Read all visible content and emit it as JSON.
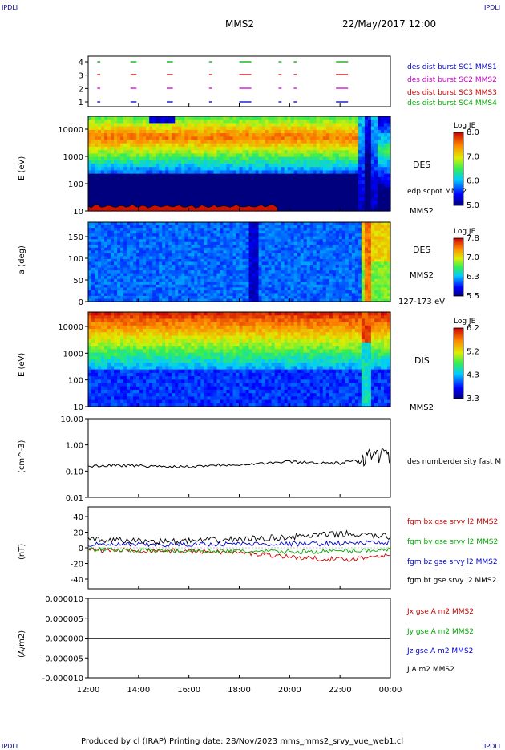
{
  "header": {
    "corner_label": "IPDLI",
    "spacecraft": "MMS2",
    "datetime": "22/May/2017 12:00"
  },
  "footer": "Produced by cl (IRAP)   Printing date: 28/Nov/2023   mms_mms2_srvy_vue_web1.cl",
  "colors": {
    "mms1": "#0000cc",
    "mms2": "#cc00cc",
    "mms3": "#cc0000",
    "mms4": "#00aa00"
  },
  "panels": {
    "burst": {
      "yticks": [
        "4",
        "3",
        "2",
        "1"
      ],
      "legend": [
        "des dist burst SC1 MMS1",
        "des dist burst SC2 MMS2",
        "des dist burst SC3 MMS3",
        "des dist burst SC4 MMS4"
      ]
    },
    "des_energy": {
      "ylabel": "E (eV)",
      "yticks": [
        "10000",
        "1000",
        "100",
        "10"
      ],
      "label_species": "DES",
      "label_scpot": "edp scpot MMS2",
      "label_sc": "MMS2",
      "colorbar_title": "Log JE",
      "colorbar_ticks": [
        "8.0",
        "7.0",
        "6.0",
        "5.0"
      ]
    },
    "des_pitch": {
      "ylabel": "a (deg)",
      "yticks": [
        "150",
        "100",
        "50",
        "0"
      ],
      "label_species": "DES",
      "label_sc": "MMS2",
      "label_range": "127-173 eV",
      "colorbar_title": "Log JE",
      "colorbar_ticks": [
        "7.8",
        "7.0",
        "6.3",
        "5.5"
      ]
    },
    "dis_energy": {
      "ylabel": "E (eV)",
      "yticks": [
        "10000",
        "1000",
        "100",
        "10"
      ],
      "label_species": "DIS",
      "label_sc": "MMS2",
      "colorbar_title": "Log JE",
      "colorbar_ticks": [
        "6.2",
        "5.2",
        "4.3",
        "3.3"
      ]
    },
    "density": {
      "ylabel": "(cm^-3)",
      "yticks": [
        "10.00",
        "1.00",
        "0.10",
        "0.01"
      ],
      "legend": "des numberdensity fast M"
    },
    "field": {
      "ylabel": "(nT)",
      "yticks": [
        "40",
        "20",
        "0",
        "-20",
        "-40"
      ],
      "legend": [
        "fgm bx gse srvy l2 MMS2",
        "fgm by gse srvy l2 MMS2",
        "fgm bz gse srvy l2 MMS2",
        "fgm bt gse srvy l2 MMS2"
      ]
    },
    "current": {
      "ylabel": "(A/m2)",
      "yticks": [
        "0.000010",
        "0.000005",
        "0.000000",
        "-0.000005",
        "-0.000010"
      ],
      "legend": [
        "Jx gse A m2 MMS2",
        "Jy gse A m2 MMS2",
        "Jz gse A m2 MMS2",
        "J A m2 MMS2"
      ]
    }
  },
  "xaxis": {
    "ticks": [
      "12:00",
      "14:00",
      "16:00",
      "18:00",
      "20:00",
      "22:00",
      "00:00"
    ]
  },
  "chart_data": [
    {
      "type": "scatter",
      "panel": "burst intervals",
      "x_range": [
        "12:00",
        "00:00"
      ],
      "y_categories": [
        1,
        2,
        3,
        4
      ],
      "series": [
        {
          "name": "des dist burst SC1 MMS1"
        },
        {
          "name": "des dist burst SC2 MMS2"
        },
        {
          "name": "des dist burst SC3 MMS3"
        },
        {
          "name": "des dist burst SC4 MMS4"
        }
      ]
    },
    {
      "type": "heatmap",
      "panel": "DES energy spectrogram",
      "yscale": "log",
      "ylim": [
        10,
        30000
      ],
      "colorbar_range": [
        5.0,
        8.0
      ]
    },
    {
      "type": "heatmap",
      "panel": "DES pitch angle",
      "ylim": [
        0,
        180
      ],
      "colorbar_range": [
        5.5,
        7.8
      ]
    },
    {
      "type": "heatmap",
      "panel": "DIS energy spectrogram",
      "yscale": "log",
      "ylim": [
        10,
        30000
      ],
      "colorbar_range": [
        3.3,
        6.2
      ]
    },
    {
      "type": "line",
      "panel": "density",
      "yscale": "log",
      "ylim": [
        0.01,
        10
      ],
      "x": [
        "12:00",
        "13:00",
        "14:00",
        "15:00",
        "16:00",
        "17:00",
        "18:00",
        "19:00",
        "20:00",
        "21:00",
        "22:00",
        "22:40",
        "23:00",
        "23:30",
        "00:00"
      ],
      "values": [
        0.15,
        0.17,
        0.16,
        0.15,
        0.15,
        0.17,
        0.18,
        0.2,
        0.23,
        0.21,
        0.2,
        0.25,
        0.4,
        0.5,
        0.45
      ]
    },
    {
      "type": "line",
      "panel": "magnetic field",
      "ylim": [
        -50,
        50
      ],
      "x": [
        "12:00",
        "14:00",
        "16:00",
        "18:00",
        "20:00",
        "22:00",
        "23:00",
        "00:00"
      ],
      "series": [
        {
          "name": "fgm bx gse srvy l2 MMS2",
          "values": [
            -3,
            -3,
            -4,
            -5,
            -8,
            -13,
            -15,
            -8
          ]
        },
        {
          "name": "fgm by gse srvy l2 MMS2",
          "values": [
            -2,
            -3,
            -4,
            -4,
            -5,
            -5,
            -4,
            -2
          ]
        },
        {
          "name": "fgm bz gse srvy l2 MMS2",
          "values": [
            4,
            4,
            4,
            5,
            5,
            5,
            6,
            7
          ]
        },
        {
          "name": "fgm bt gse srvy l2 MMS2",
          "values": [
            10,
            9,
            8,
            10,
            12,
            15,
            18,
            14
          ]
        }
      ]
    },
    {
      "type": "line",
      "panel": "current density",
      "ylim": [
        -1e-05,
        1e-05
      ],
      "x": [
        "12:00",
        "00:00"
      ],
      "series": [
        {
          "name": "Jx gse A m2 MMS2",
          "values": [
            0,
            0
          ]
        },
        {
          "name": "Jy gse A m2 MMS2",
          "values": [
            0,
            0
          ]
        },
        {
          "name": "Jz gse A m2 MMS2",
          "values": [
            0,
            0
          ]
        },
        {
          "name": "J A m2 MMS2",
          "values": [
            0,
            0
          ]
        }
      ]
    }
  ]
}
